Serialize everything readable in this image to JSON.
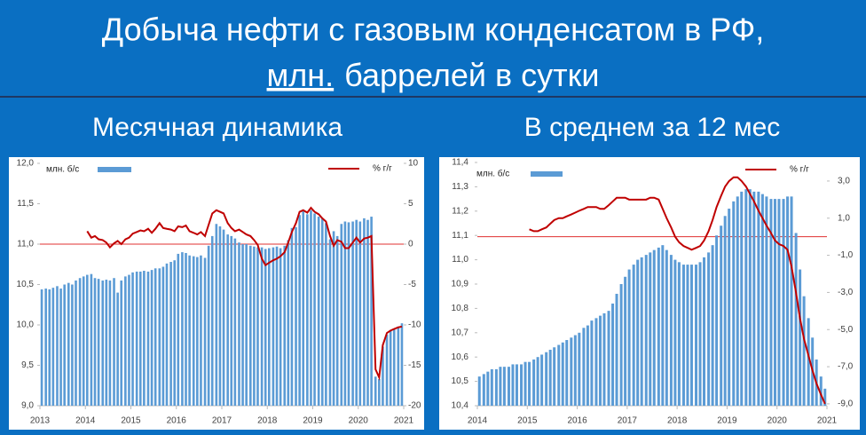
{
  "header": {
    "title_line1": "Добыча нефти с газовым конденсатом в РФ,",
    "title_line2": [
      "млн.",
      "баррелей в сутки"
    ]
  },
  "chart_data": [
    {
      "type": "combo",
      "title": "Месячная динамика",
      "xlim": [
        2013,
        2021
      ],
      "xticks": [
        2013,
        2014,
        2015,
        2016,
        2017,
        2018,
        2019,
        2020,
        2021
      ],
      "ylim": [
        9.0,
        12.0
      ],
      "yticks": [
        {
          "value": 9.0,
          "label": "9,0"
        },
        {
          "value": 9.5,
          "label": "9,5"
        },
        {
          "value": 10.0,
          "label": "10,0"
        },
        {
          "value": 10.5,
          "label": "10,5"
        },
        {
          "value": 11.0,
          "label": "11,0"
        },
        {
          "value": 11.5,
          "label": "11,5"
        },
        {
          "value": 12.0,
          "label": "12,0"
        }
      ],
      "y2lim": [
        -20,
        10
      ],
      "y2ticks": [
        -20,
        -15,
        -10,
        -5,
        0,
        5,
        10
      ],
      "y2_reference": 0,
      "x": [
        2013.04,
        2013.13,
        2013.21,
        2013.29,
        2013.38,
        2013.46,
        2013.54,
        2013.63,
        2013.71,
        2013.79,
        2013.88,
        2013.96,
        2014.04,
        2014.13,
        2014.21,
        2014.29,
        2014.38,
        2014.46,
        2014.54,
        2014.63,
        2014.71,
        2014.79,
        2014.88,
        2014.96,
        2015.04,
        2015.13,
        2015.21,
        2015.29,
        2015.38,
        2015.46,
        2015.54,
        2015.63,
        2015.71,
        2015.79,
        2015.88,
        2015.96,
        2016.04,
        2016.13,
        2016.21,
        2016.29,
        2016.38,
        2016.46,
        2016.54,
        2016.63,
        2016.71,
        2016.79,
        2016.88,
        2016.96,
        2017.04,
        2017.13,
        2017.21,
        2017.29,
        2017.38,
        2017.46,
        2017.54,
        2017.63,
        2017.71,
        2017.79,
        2017.88,
        2017.96,
        2018.04,
        2018.13,
        2018.21,
        2018.29,
        2018.38,
        2018.46,
        2018.54,
        2018.63,
        2018.71,
        2018.79,
        2018.88,
        2018.96,
        2019.04,
        2019.13,
        2019.21,
        2019.29,
        2019.38,
        2019.46,
        2019.54,
        2019.63,
        2019.71,
        2019.79,
        2019.88,
        2019.96,
        2020.04,
        2020.13,
        2020.21,
        2020.29,
        2020.38,
        2020.46,
        2020.54,
        2020.63,
        2020.71,
        2020.79,
        2020.88,
        2020.96
      ],
      "series": [
        {
          "name": "млн. б/с",
          "type": "bar",
          "color": "#5b9bd5",
          "axis": "y",
          "values": [
            10.44,
            10.45,
            10.44,
            10.46,
            10.48,
            10.45,
            10.5,
            10.52,
            10.5,
            10.55,
            10.58,
            10.6,
            10.62,
            10.63,
            10.58,
            10.57,
            10.55,
            10.56,
            10.55,
            10.58,
            10.4,
            10.55,
            10.6,
            10.62,
            10.65,
            10.66,
            10.66,
            10.67,
            10.66,
            10.68,
            10.7,
            10.7,
            10.72,
            10.76,
            10.78,
            10.8,
            10.88,
            10.9,
            10.89,
            10.86,
            10.85,
            10.84,
            10.86,
            10.83,
            10.98,
            11.1,
            11.25,
            11.22,
            11.18,
            11.12,
            11.1,
            11.07,
            11.02,
            11.0,
            11.0,
            10.98,
            10.97,
            10.96,
            10.96,
            10.94,
            10.95,
            10.96,
            10.97,
            10.95,
            10.98,
            11.05,
            11.2,
            11.21,
            11.36,
            11.41,
            11.37,
            11.42,
            11.38,
            11.34,
            11.32,
            11.26,
            11.06,
            11.16,
            11.1,
            11.25,
            11.28,
            11.27,
            11.28,
            11.3,
            11.28,
            11.32,
            11.3,
            11.34,
            9.36,
            9.33,
            9.73,
            9.88,
            9.93,
            9.95,
            9.98,
            10.02
          ]
        },
        {
          "name": "% г/г",
          "type": "line",
          "color": "#c00000",
          "axis": "y2",
          "values": [
            null,
            null,
            null,
            null,
            null,
            null,
            null,
            null,
            null,
            null,
            null,
            null,
            1.6,
            0.8,
            1.0,
            0.6,
            0.5,
            0.2,
            -0.4,
            0.1,
            0.4,
            0.0,
            0.6,
            0.8,
            1.3,
            1.5,
            1.7,
            1.6,
            1.9,
            1.4,
            1.9,
            2.6,
            2.0,
            1.9,
            1.8,
            1.6,
            2.2,
            2.1,
            2.3,
            1.6,
            1.4,
            1.2,
            1.5,
            1.0,
            2.4,
            3.8,
            4.2,
            4.0,
            3.8,
            2.6,
            2.0,
            1.6,
            1.8,
            1.5,
            1.2,
            1.0,
            0.5,
            -0.1,
            -1.8,
            -2.6,
            -2.3,
            -2.0,
            -1.8,
            -1.5,
            -1.0,
            0.2,
            1.5,
            2.6,
            4.0,
            4.2,
            3.9,
            4.5,
            4.0,
            3.7,
            3.2,
            2.8,
            1.0,
            -0.2,
            0.5,
            0.3,
            -0.5,
            -0.5,
            0.2,
            0.8,
            0.2,
            0.7,
            0.8,
            1.0,
            -15.5,
            -16.5,
            -12.5,
            -11.0,
            -10.7,
            -10.5,
            -10.3,
            -10.2
          ]
        }
      ]
    },
    {
      "type": "combo",
      "title": "В среднем за 12 мес",
      "xlim": [
        2014,
        2021
      ],
      "xticks": [
        2014,
        2015,
        2016,
        2017,
        2018,
        2019,
        2020,
        2021
      ],
      "ylim": [
        10.4,
        11.4
      ],
      "yticks": [
        {
          "value": 10.4,
          "label": "10,4"
        },
        {
          "value": 10.5,
          "label": "10,5"
        },
        {
          "value": 10.6,
          "label": "10,6"
        },
        {
          "value": 10.7,
          "label": "10,7"
        },
        {
          "value": 10.8,
          "label": "10,8"
        },
        {
          "value": 10.9,
          "label": "10,9"
        },
        {
          "value": 11.0,
          "label": "11,0"
        },
        {
          "value": 11.1,
          "label": "11,1"
        },
        {
          "value": 11.2,
          "label": "11,2"
        },
        {
          "value": 11.3,
          "label": "11,3"
        },
        {
          "value": 11.4,
          "label": "11,4"
        }
      ],
      "y2lim": [
        -9.1,
        4.0
      ],
      "y2ticks": [
        {
          "value": -9,
          "label": "-9,0"
        },
        {
          "value": -7,
          "label": "-7,0"
        },
        {
          "value": -5,
          "label": "-5,0"
        },
        {
          "value": -3,
          "label": "-3,0"
        },
        {
          "value": -1,
          "label": "-1,0"
        },
        {
          "value": 1,
          "label": "1,0"
        },
        {
          "value": 3,
          "label": "3,0"
        }
      ],
      "y2_reference": 0,
      "x": [
        2014.04,
        2014.13,
        2014.21,
        2014.29,
        2014.38,
        2014.46,
        2014.54,
        2014.63,
        2014.71,
        2014.79,
        2014.88,
        2014.96,
        2015.04,
        2015.13,
        2015.21,
        2015.29,
        2015.38,
        2015.46,
        2015.54,
        2015.63,
        2015.71,
        2015.79,
        2015.88,
        2015.96,
        2016.04,
        2016.13,
        2016.21,
        2016.29,
        2016.38,
        2016.46,
        2016.54,
        2016.63,
        2016.71,
        2016.79,
        2016.88,
        2016.96,
        2017.04,
        2017.13,
        2017.21,
        2017.29,
        2017.38,
        2017.46,
        2017.54,
        2017.63,
        2017.71,
        2017.79,
        2017.88,
        2017.96,
        2018.04,
        2018.13,
        2018.21,
        2018.29,
        2018.38,
        2018.46,
        2018.54,
        2018.63,
        2018.71,
        2018.79,
        2018.88,
        2018.96,
        2019.04,
        2019.13,
        2019.21,
        2019.29,
        2019.38,
        2019.46,
        2019.54,
        2019.63,
        2019.71,
        2019.79,
        2019.88,
        2019.96,
        2020.04,
        2020.13,
        2020.21,
        2020.29,
        2020.38,
        2020.46,
        2020.54,
        2020.63,
        2020.71,
        2020.79,
        2020.88,
        2020.96
      ],
      "series": [
        {
          "name": "млн. б/с",
          "type": "bar",
          "color": "#5b9bd5",
          "axis": "y",
          "values": [
            10.52,
            10.53,
            10.54,
            10.55,
            10.55,
            10.56,
            10.56,
            10.56,
            10.57,
            10.57,
            10.57,
            10.58,
            10.58,
            10.59,
            10.6,
            10.61,
            10.62,
            10.63,
            10.64,
            10.65,
            10.66,
            10.67,
            10.68,
            10.69,
            10.7,
            10.72,
            10.73,
            10.75,
            10.76,
            10.77,
            10.78,
            10.79,
            10.82,
            10.86,
            10.9,
            10.93,
            10.96,
            10.98,
            11.0,
            11.01,
            11.02,
            11.03,
            11.04,
            11.05,
            11.06,
            11.04,
            11.02,
            11.0,
            10.99,
            10.98,
            10.98,
            10.98,
            10.98,
            10.99,
            11.01,
            11.03,
            11.06,
            11.1,
            11.14,
            11.18,
            11.21,
            11.24,
            11.26,
            11.28,
            11.29,
            11.29,
            11.28,
            11.28,
            11.27,
            11.26,
            11.25,
            11.25,
            11.25,
            11.25,
            11.26,
            11.26,
            11.11,
            10.96,
            10.85,
            10.76,
            10.68,
            10.59,
            10.52,
            10.47
          ]
        },
        {
          "name": "% г/г",
          "type": "line",
          "color": "#c00000",
          "axis": "y2",
          "values": [
            null,
            null,
            null,
            null,
            null,
            null,
            null,
            null,
            null,
            null,
            null,
            null,
            0.4,
            0.3,
            0.3,
            0.4,
            0.5,
            0.7,
            0.9,
            1.0,
            1.0,
            1.1,
            1.2,
            1.3,
            1.4,
            1.5,
            1.6,
            1.6,
            1.6,
            1.5,
            1.5,
            1.7,
            1.9,
            2.1,
            2.1,
            2.1,
            2.0,
            2.0,
            2.0,
            2.0,
            2.0,
            2.1,
            2.1,
            2.0,
            1.5,
            1.0,
            0.5,
            0.0,
            -0.3,
            -0.5,
            -0.6,
            -0.7,
            -0.6,
            -0.5,
            -0.2,
            0.3,
            0.9,
            1.6,
            2.2,
            2.7,
            3.0,
            3.2,
            3.2,
            3.0,
            2.7,
            2.3,
            1.9,
            1.4,
            1.0,
            0.6,
            0.2,
            -0.2,
            -0.4,
            -0.5,
            -0.7,
            -1.6,
            -3.0,
            -4.4,
            -5.5,
            -6.4,
            -7.2,
            -7.9,
            -8.5,
            -9.0
          ]
        }
      ]
    }
  ]
}
